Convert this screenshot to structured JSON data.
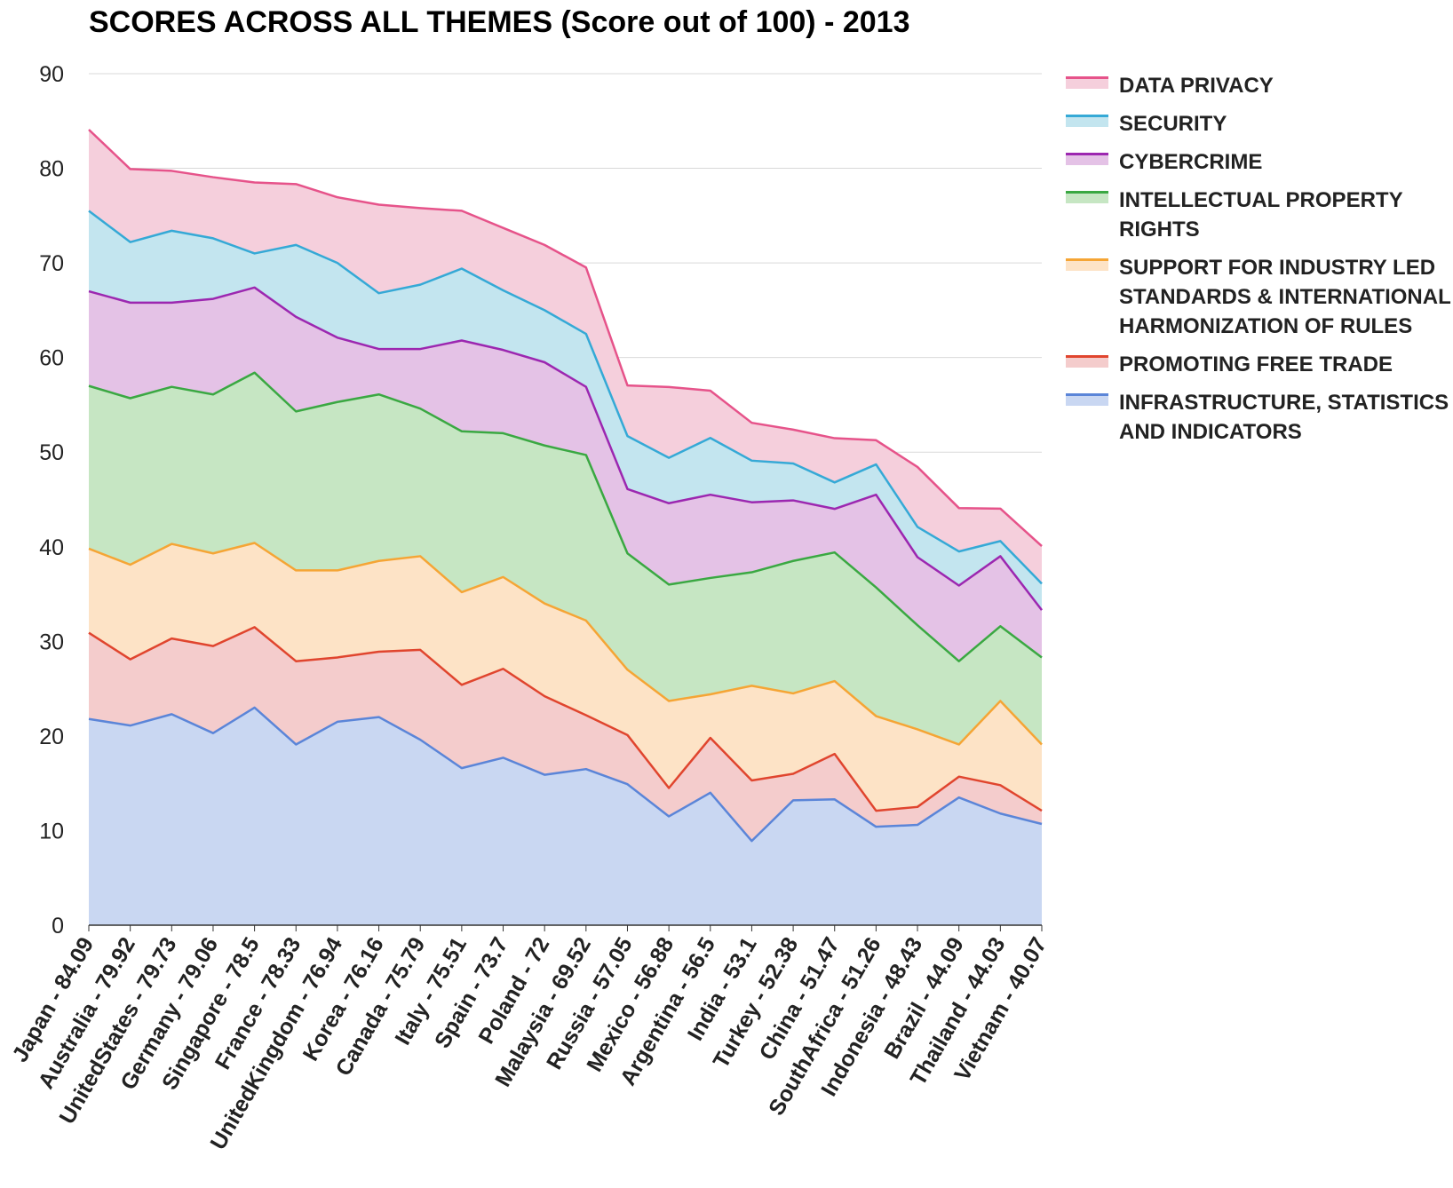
{
  "chart_data": {
    "type": "area",
    "stacked": true,
    "title": "SCORES ACROSS ALL THEMES (Score out of 100) - 2013",
    "xlabel": "",
    "ylabel": "",
    "ylim": [
      0,
      90
    ],
    "yticks": [
      0,
      10,
      20,
      30,
      40,
      50,
      60,
      70,
      80,
      90
    ],
    "grid": true,
    "legend_position": "right",
    "categories": [
      "Japan - 84.09",
      "Australia - 79.92",
      "UnitedStates - 79.73",
      "Germany - 79.06",
      "Singapore - 78.5",
      "France - 78.33",
      "UnitedKingdom - 76.94",
      "Korea - 76.16",
      "Canada - 75.79",
      "Italy - 75.51",
      "Spain - 73.7",
      "Poland - 72",
      "Malaysia - 69.52",
      "Russia - 57.05",
      "Mexico - 56.88",
      "Argentina - 56.5",
      "India - 53.1",
      "Turkey - 52.38",
      "China - 51.47",
      "SouthAfrica - 51.26",
      "Indonesia - 48.43",
      "Brazil - 44.09",
      "Thailand - 44.03",
      "Vietnam - 40.07"
    ],
    "series": [
      {
        "name": "INFRASTRUCTURE, STATISTICS AND INDICATORS",
        "color": "#5b85d8",
        "fill": "#c9d7f2",
        "values": [
          21.8,
          21.1,
          22.3,
          20.3,
          23.0,
          19.1,
          21.5,
          22.0,
          19.6,
          16.6,
          17.7,
          15.9,
          16.5,
          14.9,
          11.5,
          14.0,
          8.9,
          13.2,
          13.3,
          10.4,
          10.6,
          13.5,
          11.8,
          10.7
        ]
      },
      {
        "name": "PROMOTING FREE TRADE",
        "color": "#e0452e",
        "fill": "#f4cccc",
        "values": [
          9.1,
          7.0,
          8.0,
          9.2,
          8.5,
          8.8,
          6.8,
          6.9,
          9.5,
          8.8,
          9.4,
          8.3,
          5.7,
          5.2,
          3.0,
          5.8,
          6.4,
          2.8,
          4.8,
          1.7,
          1.9,
          2.2,
          3.0,
          1.4
        ]
      },
      {
        "name": "SUPPORT FOR INDUSTRY LED STANDARDS & INTERNATIONAL HARMONIZATION OF RULES",
        "color": "#f5a535",
        "fill": "#fde3c6",
        "values": [
          8.9,
          10.0,
          10.0,
          9.8,
          8.9,
          9.6,
          9.2,
          9.6,
          9.9,
          9.8,
          9.7,
          9.8,
          10.0,
          6.9,
          9.2,
          4.6,
          10.0,
          8.5,
          7.7,
          10.0,
          8.2,
          3.4,
          8.9,
          7.0
        ]
      },
      {
        "name": "INTELLECTUAL PROPERTY RIGHTS",
        "color": "#3aa842",
        "fill": "#c6e6c3",
        "values": [
          17.2,
          17.6,
          16.6,
          16.8,
          18.0,
          16.8,
          17.8,
          17.6,
          15.6,
          17.0,
          15.2,
          16.7,
          17.5,
          12.3,
          12.3,
          12.3,
          12.0,
          14.0,
          13.6,
          13.6,
          11.0,
          8.8,
          7.9,
          9.2
        ]
      },
      {
        "name": "CYBERCRIME",
        "color": "#9c27b0",
        "fill": "#e4c2e6",
        "values": [
          10.0,
          10.1,
          8.9,
          10.1,
          9.0,
          10.0,
          6.8,
          4.8,
          6.3,
          9.6,
          8.8,
          8.8,
          7.2,
          6.8,
          8.6,
          8.8,
          7.4,
          6.4,
          4.6,
          9.8,
          7.2,
          8.0,
          7.4,
          5.0
        ]
      },
      {
        "name": "SECURITY",
        "color": "#35a9d6",
        "fill": "#c3e5ef",
        "values": [
          8.5,
          6.4,
          7.6,
          6.4,
          3.6,
          7.6,
          7.9,
          5.9,
          6.8,
          7.6,
          6.3,
          5.5,
          5.6,
          5.6,
          4.8,
          6.0,
          4.4,
          3.9,
          2.8,
          3.2,
          3.2,
          3.6,
          1.6,
          2.8
        ]
      },
      {
        "name": "DATA PRIVACY",
        "color": "#e6538a",
        "fill": "#f5cfdc",
        "values": [
          8.59,
          7.72,
          6.33,
          6.46,
          7.5,
          6.43,
          6.94,
          9.36,
          8.09,
          6.11,
          6.6,
          6.9,
          7.02,
          5.35,
          7.48,
          5.0,
          4.0,
          3.58,
          4.67,
          2.56,
          6.33,
          4.59,
          3.43,
          3.97
        ]
      }
    ]
  }
}
